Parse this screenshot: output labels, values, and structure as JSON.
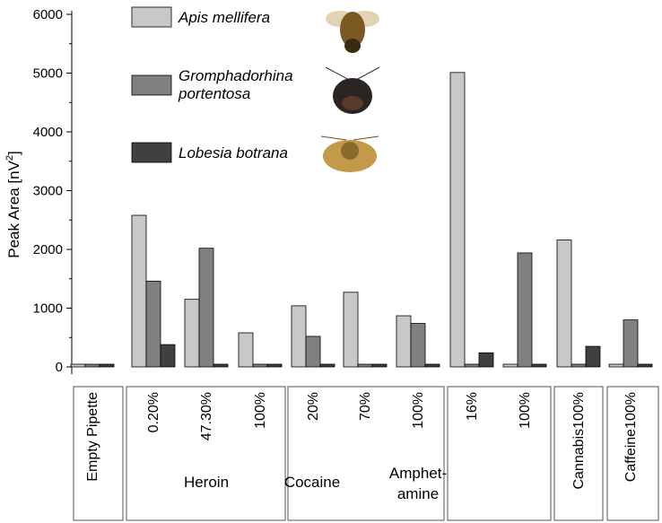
{
  "chart_data": {
    "type": "bar",
    "ylabel_main": "Peak Area [nV",
    "ylabel_sup": "2",
    "ylabel_tail": "]",
    "ylim": [
      0,
      6000
    ],
    "yticks": [
      "0",
      "1000",
      "2000",
      "3000",
      "4000",
      "5000",
      "6000"
    ],
    "ytick_values": [
      0,
      1000,
      2000,
      3000,
      4000,
      5000,
      6000
    ],
    "legend_position": "top-left",
    "grid": false,
    "categories": [
      "Empty Pipette",
      "0.20%",
      "47.30%",
      "100%",
      "20%",
      "70%",
      "100%",
      "16%",
      "100%",
      "Cannabis 100%",
      "Caffeine 100%"
    ],
    "category_labels": [
      "Empty Pipette",
      "0.20%",
      "47.30%",
      "100%",
      "20%",
      "70%",
      "100%",
      "16%",
      "100%",
      "Cannabis100%",
      "Caffeine100%"
    ],
    "groups": [
      {
        "lines": [
          "Heroin"
        ]
      },
      {
        "lines": [
          "Cocaine"
        ]
      },
      {
        "lines": [
          "Amphet-",
          "amine"
        ]
      }
    ],
    "series": [
      {
        "name": "Apis mellifera",
        "color": "#c8c8c8",
        "values": [
          0,
          2580,
          1150,
          580,
          1040,
          1270,
          870,
          5010,
          0,
          2160,
          0
        ]
      },
      {
        "name_lines": [
          "Gromphadorhina",
          "portentosa"
        ],
        "name": "Gromphadorhina portentosa",
        "color": "#808080",
        "values": [
          0,
          1460,
          2020,
          0,
          520,
          0,
          740,
          0,
          1940,
          0,
          800
        ]
      },
      {
        "name": "Lobesia botrana",
        "color": "#404040",
        "values": [
          0,
          380,
          0,
          0,
          0,
          0,
          0,
          240,
          0,
          350,
          0
        ]
      }
    ]
  }
}
